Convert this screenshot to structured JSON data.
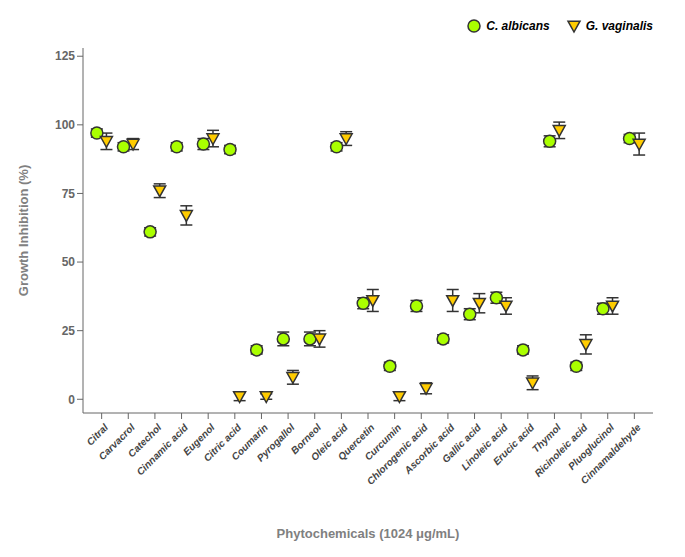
{
  "chart_data": {
    "type": "scatter",
    "xlabel": "Phytochemicals (1024 μg/mL)",
    "ylabel": "Growth Inhibition (%)",
    "categories": [
      "Citral",
      "Carvacrol",
      "Catechol",
      "Cinnamic acid",
      "Eugenol",
      "Citric acid",
      "Coumarin",
      "Pyrogallol",
      "Borneol",
      "Oleic acid",
      "Quercetin",
      "Curcumin",
      "Chlorogenic acid",
      "Ascorbic acid",
      "Gallic acid",
      "Linoleic acid",
      "Erucic acid",
      "Thymol",
      "Ricinoleic acid",
      "Pluoglucinol",
      "Cinnamaldehyde"
    ],
    "series": [
      {
        "name": "C. albicans",
        "color": "#aaff00",
        "marker": "circle",
        "values": [
          97,
          92,
          61,
          92,
          93,
          91,
          18,
          22,
          22,
          92,
          35,
          12,
          34,
          22,
          31,
          37,
          18,
          94,
          12,
          33,
          95
        ],
        "errors": [
          1.5,
          1.5,
          1.5,
          1.5,
          2.0,
          1.5,
          1.5,
          2.5,
          2.5,
          1.5,
          2.0,
          1.5,
          2.0,
          1.5,
          2.0,
          2.0,
          1.5,
          2.0,
          1.5,
          2.0,
          1.5
        ]
      },
      {
        "name": "G. vaginalis",
        "color": "#ffcc00",
        "marker": "triangle-down",
        "values": [
          94,
          93,
          76,
          67,
          95,
          1,
          1,
          8,
          22,
          95,
          36,
          1,
          4,
          36,
          35,
          34,
          6,
          98,
          20,
          34,
          93
        ],
        "errors": [
          3.0,
          2.0,
          2.5,
          3.5,
          3.0,
          1.5,
          1.0,
          2.5,
          3.0,
          2.5,
          4.0,
          1.5,
          2.0,
          4.0,
          3.5,
          3.0,
          2.5,
          3.0,
          3.5,
          3.0,
          4.0
        ]
      }
    ],
    "ylim": [
      -5,
      128
    ],
    "yticks": [
      0,
      25,
      50,
      75,
      100,
      125
    ],
    "legend": "upper right"
  }
}
